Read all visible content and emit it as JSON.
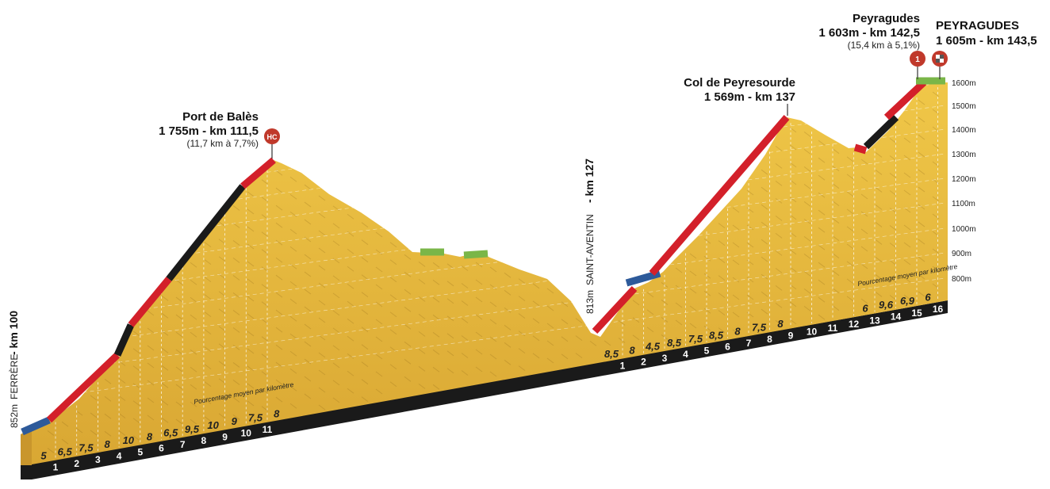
{
  "climbs": [
    {
      "name": "Port de Balès",
      "stats": "1 755m - km 111,5",
      "detail": "(11,7 km à 7,7%)",
      "category": "HC",
      "color": "#c0392b"
    },
    {
      "name": "Col de Peyresourde",
      "stats": "1 569m - km 137",
      "detail": "",
      "category": "",
      "color": "#c0392b"
    },
    {
      "name": "Peyragudes",
      "stats": "1 603m - km 142,5",
      "detail": "(15,4 km à 5,1%)",
      "category": "1",
      "color": "#c0392b"
    }
  ],
  "finish": {
    "name": "PEYRAGUDES",
    "stats": "1 605m - km 143,5",
    "icon": "checkered-flag-icon"
  },
  "start_label": {
    "alt": "852m",
    "place": "FERRÈRE",
    "km": "- km 100"
  },
  "valley_label": {
    "alt": "813m",
    "place": "SAINT-AVENTIN",
    "km": "- km 127"
  },
  "note_text": "Pourcentage moyen par kilomètre",
  "altitude_axis": [
    "1600m",
    "1500m",
    "1400m",
    "1300m",
    "1200m",
    "1100m",
    "1000m",
    "900m",
    "800m"
  ],
  "section1": {
    "km_markers": [
      "1",
      "2",
      "3",
      "4",
      "5",
      "6",
      "7",
      "8",
      "9",
      "10",
      "11"
    ],
    "gradients": [
      "5",
      "6,5",
      "7,5",
      "8",
      "10",
      "8",
      "6,5",
      "9,5",
      "10",
      "9",
      "7,5",
      "8"
    ]
  },
  "section2": {
    "km_markers": [
      "1",
      "2",
      "3",
      "4",
      "5",
      "6",
      "7",
      "8",
      "9",
      "10",
      "11",
      "12",
      "13",
      "14",
      "15",
      "16"
    ],
    "gradients": [
      "8,5",
      "8",
      "4,5",
      "8,5",
      "7,5",
      "8,5",
      "8",
      "7,5",
      "8",
      "6",
      "9,6",
      "6,9",
      "6"
    ]
  },
  "colors": {
    "terrain": "#e6b83a",
    "terrain_dark": "#b8862a",
    "base": "#1a1a1a",
    "road_red": "#d3202a",
    "road_black": "#1a1a1a",
    "road_blue": "#2d5a9a",
    "road_green": "#7ab648",
    "grid": "#ffffff"
  }
}
